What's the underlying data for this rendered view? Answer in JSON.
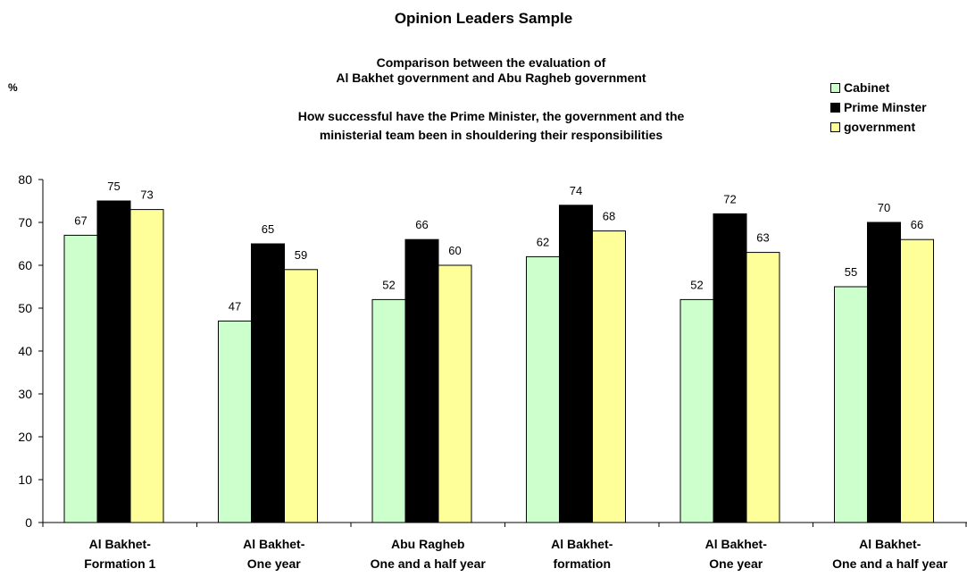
{
  "chart_data": {
    "type": "bar",
    "title": "Opinion Leaders Sample",
    "subtitle_lines": [
      "Comparison between  the evaluation of",
      "Al Bakhet government and Abu Ragheb government"
    ],
    "question_lines": [
      "How successful have the Prime Minister, the government and the",
      "ministerial team been in shouldering their responsibilities"
    ],
    "ylabel": "%",
    "ylim": [
      0,
      80
    ],
    "yticks": [
      0,
      10,
      20,
      30,
      40,
      50,
      60,
      70,
      80
    ],
    "categories": [
      [
        "Al Bakhet-",
        "Formation 1"
      ],
      [
        "Al Bakhet-",
        "One year"
      ],
      [
        "Abu Ragheb",
        "One and a half year"
      ],
      [
        "Al Bakhet-",
        "formation"
      ],
      [
        "Al Bakhet-",
        "One year"
      ],
      [
        "Al Bakhet-",
        "One and a half year"
      ]
    ],
    "series": [
      {
        "name": "Cabinet",
        "color": "#ccffcc",
        "values": [
          67,
          47,
          52,
          62,
          52,
          55
        ]
      },
      {
        "name": "Prime Minster",
        "color": "#000000",
        "values": [
          75,
          65,
          66,
          74,
          72,
          70
        ]
      },
      {
        "name": "government",
        "color": "#ffff99",
        "values": [
          73,
          59,
          60,
          68,
          63,
          66
        ]
      }
    ],
    "legend_position": "top-right",
    "grid": false
  }
}
